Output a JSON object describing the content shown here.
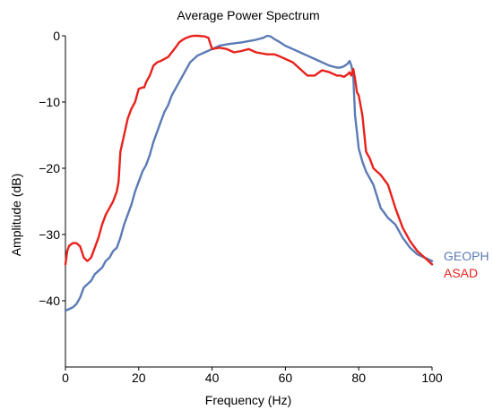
{
  "chart_data": {
    "type": "line",
    "title": "Average Power Spectrum",
    "xlabel": "Frequency (Hz)",
    "ylabel": "Amplitude (dB)",
    "xlim": [
      0,
      100
    ],
    "ylim": [
      -50,
      0
    ],
    "xticks": [
      0,
      20,
      40,
      60,
      80,
      100
    ],
    "yticks": [
      0,
      -10,
      -20,
      -30,
      -40
    ],
    "xtick_labels": [
      "0",
      "20",
      "40",
      "60",
      "80",
      "100"
    ],
    "ytick_labels": [
      "0",
      "−10",
      "−20",
      "−30",
      "−40"
    ],
    "grid": false,
    "legend_placement": "right",
    "series": [
      {
        "name": "GEOPH",
        "color": "#5b7bb5",
        "x": [
          0,
          2,
          3,
          4,
          5,
          6,
          7,
          8,
          9,
          10,
          11,
          12,
          13,
          14,
          15,
          16,
          17,
          18,
          19,
          20,
          21,
          22,
          23,
          24,
          25,
          26,
          27,
          28,
          29,
          30,
          32,
          34,
          36,
          38,
          40,
          42,
          45,
          48,
          50,
          52,
          54,
          55,
          56,
          57,
          58,
          60,
          62,
          64,
          66,
          68,
          70,
          72,
          74,
          75,
          76,
          77,
          77.5,
          78,
          78.5,
          79,
          80,
          81,
          82,
          84,
          86,
          88,
          90,
          92,
          94,
          96,
          98,
          100
        ],
        "y": [
          -41.5,
          -41,
          -40.5,
          -39.5,
          -38,
          -37.5,
          -37,
          -36,
          -35.5,
          -35,
          -34,
          -33.5,
          -32.5,
          -32,
          -30.5,
          -28.5,
          -27,
          -25.5,
          -23.5,
          -22,
          -20.5,
          -19.5,
          -18,
          -16,
          -14.5,
          -13,
          -11.5,
          -10.5,
          -9,
          -8,
          -6,
          -4,
          -3,
          -2.5,
          -2,
          -1.5,
          -1.2,
          -1,
          -0.8,
          -0.6,
          -0.3,
          0,
          -0.1,
          -0.5,
          -0.8,
          -1.5,
          -2,
          -2.5,
          -3,
          -3.5,
          -4,
          -4.5,
          -4.8,
          -4.8,
          -4.6,
          -4.2,
          -3.8,
          -4.5,
          -6,
          -12,
          -17,
          -19,
          -20.5,
          -22.5,
          -26,
          -27.5,
          -28.5,
          -30.5,
          -32,
          -33,
          -33.5,
          -34
        ]
      },
      {
        "name": "ASAD",
        "color": "#e8221c",
        "x": [
          0,
          0.5,
          1,
          2,
          3,
          4,
          5,
          6,
          7,
          8,
          9,
          10,
          11,
          12,
          13,
          14,
          14.5,
          15,
          16,
          17,
          18,
          19,
          20,
          21,
          21.5,
          22,
          23,
          24,
          25,
          26,
          27,
          28,
          29,
          30,
          31,
          32,
          33,
          34,
          35,
          36,
          38,
          39,
          40,
          42,
          44,
          46,
          48,
          50,
          52,
          55,
          57,
          58,
          60,
          62,
          64,
          66,
          68,
          70,
          72,
          74,
          75,
          76,
          77,
          77.5,
          78,
          78.5,
          79,
          79.5,
          80,
          81,
          82,
          83,
          84,
          85,
          86,
          88,
          90,
          92,
          94,
          96,
          98,
          100
        ],
        "y": [
          -34.5,
          -32.5,
          -31.7,
          -31.3,
          -31.3,
          -31.8,
          -33.5,
          -34,
          -33.5,
          -32,
          -30.5,
          -28.5,
          -27,
          -26,
          -25,
          -23.5,
          -22,
          -17.5,
          -15,
          -12.5,
          -11,
          -10,
          -8,
          -7.8,
          -7.8,
          -7,
          -6,
          -4.5,
          -4,
          -3.8,
          -3.5,
          -3.2,
          -2.5,
          -1.8,
          -1,
          -0.6,
          -0.3,
          -0.1,
          0,
          0,
          -0.1,
          -0.3,
          -2,
          -1.8,
          -2,
          -2.5,
          -2.3,
          -2,
          -2.5,
          -2.8,
          -2.8,
          -3,
          -3.5,
          -4,
          -5,
          -6,
          -6,
          -5.2,
          -5.5,
          -6,
          -6,
          -6.2,
          -5.8,
          -5.5,
          -6,
          -5,
          -6.5,
          -8.5,
          -9,
          -12,
          -17.5,
          -18.5,
          -20,
          -20.5,
          -21,
          -22.5,
          -26,
          -29,
          -31,
          -32.5,
          -33.5,
          -34.5
        ]
      }
    ]
  }
}
